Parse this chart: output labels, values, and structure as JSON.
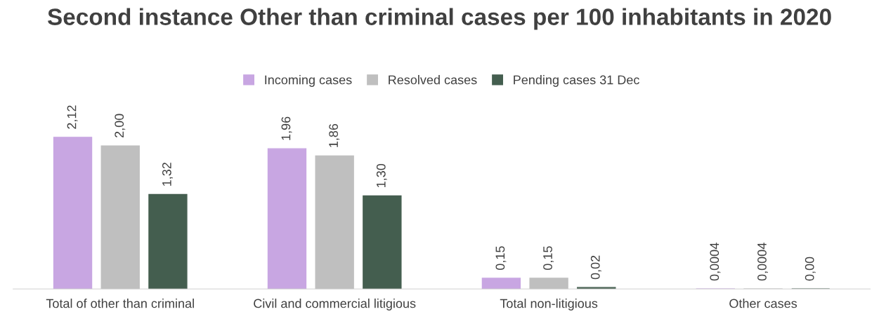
{
  "chart_data": {
    "type": "bar",
    "title": "Second instance Other than criminal cases per 100 inhabitants in 2020",
    "categories": [
      "Total of other than criminal",
      "Civil and commercial litigious",
      "Total non-litigious",
      "Other cases"
    ],
    "series": [
      {
        "name": "Incoming cases",
        "color": "#c8a6e2",
        "values": [
          2.12,
          1.96,
          0.15,
          0.0004
        ],
        "value_labels": [
          "2,12",
          "1,96",
          "0,15",
          "0,0004"
        ]
      },
      {
        "name": "Resolved cases",
        "color": "#bfbfbf",
        "values": [
          2.0,
          1.86,
          0.15,
          0.0004
        ],
        "value_labels": [
          "2,00",
          "1,86",
          "0,15",
          "0,0004"
        ]
      },
      {
        "name": "Pending cases 31 Dec",
        "color": "#445e4f",
        "values": [
          1.32,
          1.3,
          0.02,
          0.0
        ],
        "value_labels": [
          "1,32",
          "1,30",
          "0,02",
          "0,00"
        ]
      }
    ],
    "legend": "top",
    "tick_labels": "x"
  }
}
